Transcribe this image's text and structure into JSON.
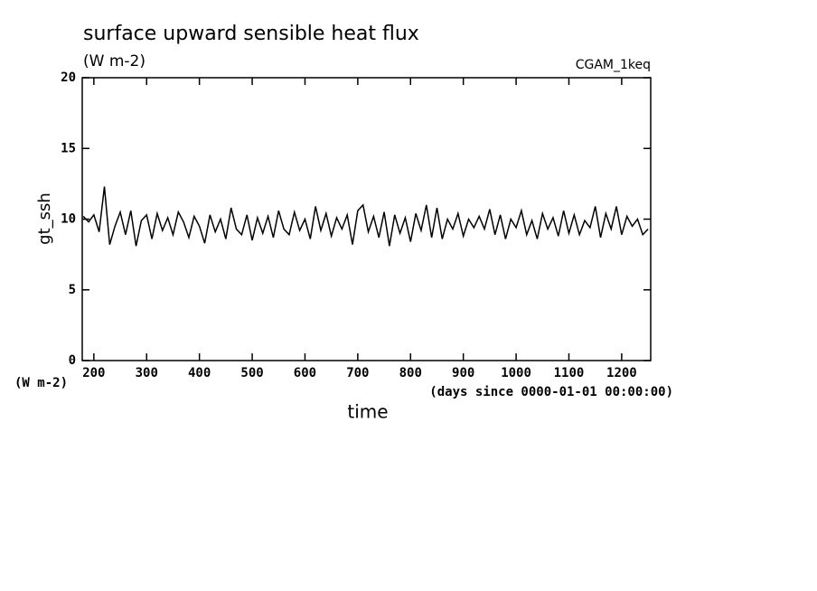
{
  "chart_data": {
    "type": "line",
    "title": "surface upward sensible heat flux",
    "subtitle": "(W m-2)",
    "label": "CGAM_1keq",
    "ylabel": "gt_ssh",
    "yunit": "(W m-2)",
    "xlabel": "time",
    "xunit": "(days since 0000-01-01 00:00:00)",
    "color": "#000000",
    "xlim": [
      178,
      1255
    ],
    "ylim": [
      0,
      20
    ],
    "xticks": [
      200,
      300,
      400,
      500,
      600,
      700,
      800,
      900,
      1000,
      1100,
      1200
    ],
    "yticks": [
      0,
      5,
      10,
      15,
      20
    ],
    "x": [
      180,
      190,
      200,
      210,
      220,
      230,
      240,
      250,
      260,
      270,
      280,
      290,
      300,
      310,
      320,
      330,
      340,
      350,
      360,
      370,
      380,
      390,
      400,
      410,
      420,
      430,
      440,
      450,
      460,
      470,
      480,
      490,
      500,
      510,
      520,
      530,
      540,
      550,
      560,
      570,
      580,
      590,
      600,
      610,
      620,
      630,
      640,
      650,
      660,
      670,
      680,
      690,
      700,
      710,
      720,
      730,
      740,
      750,
      760,
      770,
      780,
      790,
      800,
      810,
      820,
      830,
      840,
      850,
      860,
      870,
      880,
      890,
      900,
      910,
      920,
      930,
      940,
      950,
      960,
      970,
      980,
      990,
      1000,
      1010,
      1020,
      1030,
      1040,
      1050,
      1060,
      1070,
      1080,
      1090,
      1100,
      1110,
      1120,
      1130,
      1140,
      1150,
      1160,
      1170,
      1180,
      1190,
      1200,
      1210,
      1220,
      1230,
      1240,
      1250
    ],
    "values": [
      10.2,
      9.8,
      10.3,
      9.1,
      12.3,
      8.2,
      9.5,
      10.5,
      8.9,
      10.6,
      8.1,
      9.9,
      10.3,
      8.6,
      10.4,
      9.2,
      10.1,
      8.9,
      10.5,
      9.8,
      8.7,
      10.2,
      9.5,
      8.3,
      10.3,
      9.1,
      10.0,
      8.6,
      10.8,
      9.3,
      8.9,
      10.3,
      8.5,
      10.1,
      9.0,
      10.2,
      8.7,
      10.6,
      9.3,
      8.9,
      10.5,
      9.2,
      10.0,
      8.6,
      10.9,
      9.2,
      10.4,
      8.8,
      10.1,
      9.3,
      10.3,
      8.2,
      10.6,
      11.0,
      9.1,
      10.2,
      8.7,
      10.5,
      8.1,
      10.3,
      9.0,
      10.1,
      8.4,
      10.4,
      9.2,
      11.0,
      8.7,
      10.8,
      8.6,
      10.0,
      9.3,
      10.4,
      8.8,
      10.0,
      9.4,
      10.2,
      9.3,
      10.7,
      8.9,
      10.3,
      8.6,
      10.0,
      9.4,
      10.6,
      8.9,
      9.9,
      8.6,
      10.4,
      9.3,
      10.1,
      8.8,
      10.6,
      9.0,
      10.3,
      8.9,
      9.9,
      9.4,
      10.9,
      8.7,
      10.4,
      9.3,
      10.9,
      8.9,
      10.2,
      9.5,
      10.0,
      8.9,
      9.3
    ]
  }
}
